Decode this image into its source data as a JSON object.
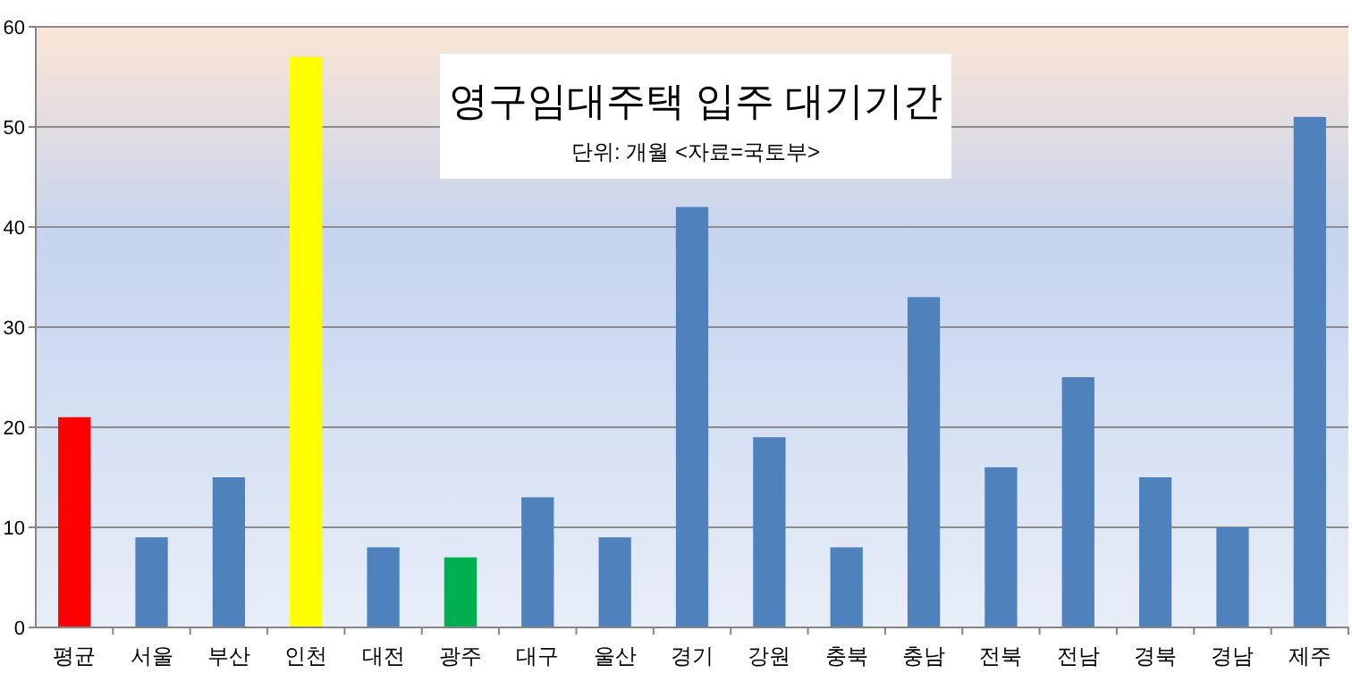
{
  "chart_data": {
    "type": "bar",
    "title": "영구임대주택 입주 대기기간",
    "subtitle": "단위: 개월 <자료=국토부>",
    "categories": [
      "평균",
      "서울",
      "부산",
      "인천",
      "대전",
      "광주",
      "대구",
      "울산",
      "경기",
      "강원",
      "충북",
      "충남",
      "전북",
      "전남",
      "경북",
      "경남",
      "제주"
    ],
    "values": [
      21,
      9,
      15,
      57,
      8,
      7,
      13,
      9,
      42,
      19,
      8,
      33,
      16,
      25,
      15,
      10,
      51
    ],
    "colors": [
      "#ff0000",
      "#4f81bd",
      "#4f81bd",
      "#ffff00",
      "#4f81bd",
      "#00b050",
      "#4f81bd",
      "#4f81bd",
      "#4f81bd",
      "#4f81bd",
      "#4f81bd",
      "#4f81bd",
      "#4f81bd",
      "#4f81bd",
      "#4f81bd",
      "#4f81bd",
      "#4f81bd"
    ],
    "ylim": [
      0,
      60
    ],
    "yticks": [
      0,
      10,
      20,
      30,
      40,
      50,
      60
    ],
    "grid": "y"
  }
}
